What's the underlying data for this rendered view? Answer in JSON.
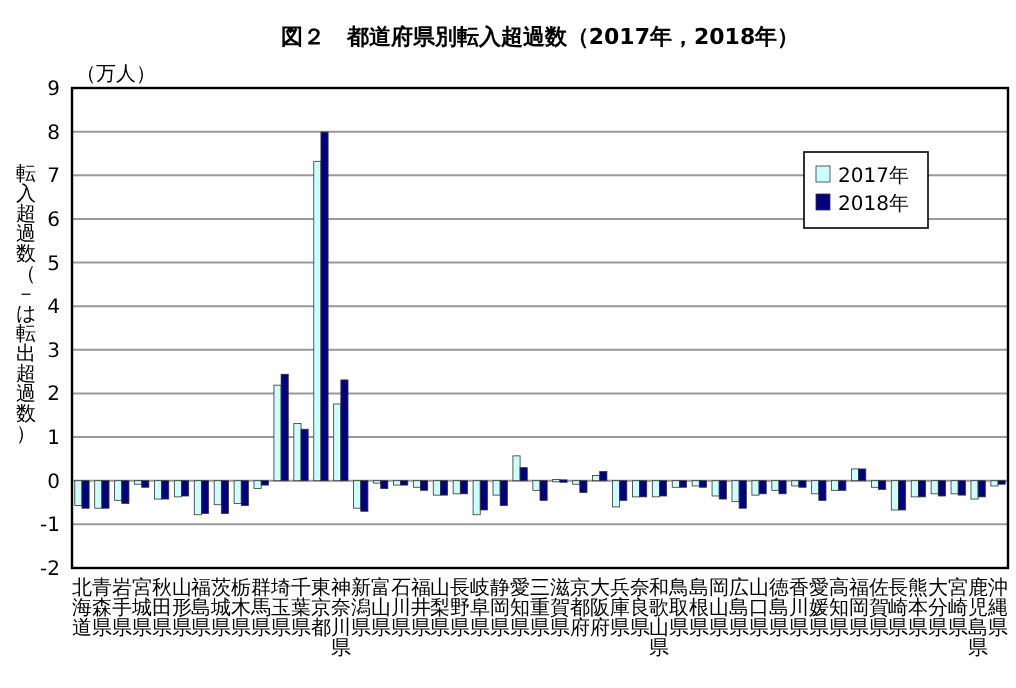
{
  "chart_data": {
    "type": "bar",
    "title": "図２　都道府県別転入超過数（2017年，2018年）",
    "ylabel": "転入超過数（－は転出超過数）",
    "annotations": [
      "（万人）"
    ],
    "categories": [
      "北海道",
      "青森県",
      "岩手県",
      "宮城県",
      "秋田県",
      "山形県",
      "福島県",
      "茨城県",
      "栃木県",
      "群馬県",
      "埼玉県",
      "千葉県",
      "東京都",
      "神奈川県",
      "新潟県",
      "富山県",
      "石川県",
      "福井県",
      "山梨県",
      "長野県",
      "岐阜県",
      "静岡県",
      "愛知県",
      "三重県",
      "滋賀県",
      "京都府",
      "大阪府",
      "兵庫県",
      "奈良県",
      "和歌山県",
      "鳥取県",
      "島根県",
      "岡山県",
      "広島県",
      "山口県",
      "徳島県",
      "香川県",
      "愛媛県",
      "高知県",
      "福岡県",
      "佐賀県",
      "長崎県",
      "熊本県",
      "大分県",
      "宮崎県",
      "鹿児島県",
      "沖縄県"
    ],
    "series": [
      {
        "name": "2017年",
        "color": "#ccffff",
        "values": [
          -0.57,
          -0.63,
          -0.45,
          -0.08,
          -0.42,
          -0.37,
          -0.78,
          -0.55,
          -0.52,
          -0.18,
          2.19,
          1.31,
          7.32,
          1.76,
          -0.63,
          -0.05,
          -0.1,
          -0.15,
          -0.33,
          -0.3,
          -0.78,
          -0.33,
          0.57,
          -0.22,
          0.03,
          -0.08,
          0.12,
          -0.6,
          -0.37,
          -0.37,
          -0.15,
          -0.12,
          -0.35,
          -0.48,
          -0.33,
          -0.22,
          -0.12,
          -0.3,
          -0.22,
          0.27,
          -0.15,
          -0.67,
          -0.37,
          -0.3,
          -0.3,
          -0.42,
          -0.12
        ]
      },
      {
        "name": "2018年",
        "color": "#000080",
        "values": [
          -0.63,
          -0.63,
          -0.52,
          -0.15,
          -0.42,
          -0.35,
          -0.75,
          -0.75,
          -0.57,
          -0.1,
          2.44,
          1.18,
          7.99,
          2.31,
          -0.7,
          -0.18,
          -0.1,
          -0.22,
          -0.33,
          -0.3,
          -0.67,
          -0.57,
          0.3,
          -0.45,
          0.02,
          -0.27,
          0.21,
          -0.45,
          -0.37,
          -0.35,
          -0.15,
          -0.15,
          -0.42,
          -0.63,
          -0.3,
          -0.3,
          -0.15,
          -0.45,
          -0.22,
          0.27,
          -0.2,
          -0.67,
          -0.37,
          -0.35,
          -0.33,
          -0.37,
          -0.08
        ]
      }
    ],
    "ylim": [
      -2,
      9
    ],
    "yticks": [
      -2,
      -1,
      0,
      1,
      2,
      3,
      4,
      5,
      6,
      7,
      8,
      9
    ],
    "grid": "y",
    "legend": "top right"
  }
}
